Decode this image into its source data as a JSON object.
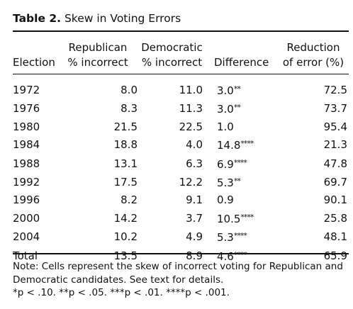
{
  "title": {
    "label": "Table 2.",
    "text": "Skew in Voting Errors"
  },
  "headers": {
    "election": "Election",
    "republican": [
      "Republican",
      "% incorrect"
    ],
    "democratic": [
      "Democratic",
      "% incorrect"
    ],
    "difference": "Difference",
    "reduction": [
      "Reduction",
      "of error (%)"
    ]
  },
  "rows": [
    {
      "election": "1972",
      "republican": "8.0",
      "democratic": "11.0",
      "difference": "3.0",
      "stars": "**",
      "reduction": "72.5"
    },
    {
      "election": "1976",
      "republican": "8.3",
      "democratic": "11.3",
      "difference": "3.0",
      "stars": "**",
      "reduction": "73.7"
    },
    {
      "election": "1980",
      "republican": "21.5",
      "democratic": "22.5",
      "difference": "1.0",
      "stars": "",
      "reduction": "95.4"
    },
    {
      "election": "1984",
      "republican": "18.8",
      "democratic": "4.0",
      "difference": "14.8",
      "stars": "****",
      "reduction": "21.3"
    },
    {
      "election": "1988",
      "republican": "13.1",
      "democratic": "6.3",
      "difference": "6.9",
      "stars": "****",
      "reduction": "47.8"
    },
    {
      "election": "1992",
      "republican": "17.5",
      "democratic": "12.2",
      "difference": "5.3",
      "stars": "**",
      "reduction": "69.7"
    },
    {
      "election": "1996",
      "republican": "8.2",
      "democratic": "9.1",
      "difference": "0.9",
      "stars": "",
      "reduction": "90.1"
    },
    {
      "election": "2000",
      "republican": "14.2",
      "democratic": "3.7",
      "difference": "10.5",
      "stars": "****",
      "reduction": "25.8"
    },
    {
      "election": "2004",
      "republican": "10.2",
      "democratic": "4.9",
      "difference": "5.3",
      "stars": "****",
      "reduction": "48.1"
    },
    {
      "election": "Total",
      "republican": "13.5",
      "democratic": "8.9",
      "difference": "4.6",
      "stars": "****",
      "reduction": "65.9"
    }
  ],
  "note": {
    "line1": "Note: Cells represent the skew of incorrect voting for Republican and",
    "line2": "Democratic candidates. See text for details.",
    "sig": [
      "*p < .10.",
      "**p < .05.",
      "***p < .01.",
      "****p < .001."
    ]
  }
}
